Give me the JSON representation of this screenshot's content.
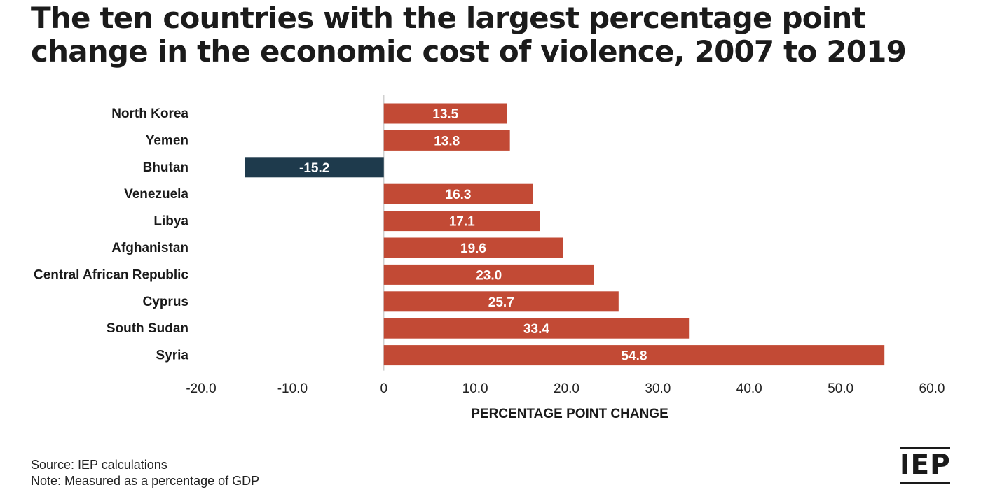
{
  "title_lines": [
    "The ten countries with the largest percentage point",
    "change in the economic cost of violence, 2007 to 2019"
  ],
  "footer": {
    "source": "Source: IEP calculations",
    "note": "Note: Measured as a percentage of GDP"
  },
  "logo_text": "IEP",
  "colors": {
    "positive": "#c24a35",
    "negative": "#1e3a4c",
    "axis": "#d0d0d0",
    "text": "#1a1a1a"
  },
  "chart_data": {
    "type": "bar",
    "orientation": "horizontal",
    "categories": [
      "North Korea",
      "Yemen",
      "Bhutan",
      "Venezuela",
      "Libya",
      "Afghanistan",
      "Central African Republic",
      "Cyprus",
      "South Sudan",
      "Syria"
    ],
    "values": [
      13.5,
      13.8,
      -15.2,
      16.3,
      17.1,
      19.6,
      23.0,
      25.7,
      33.4,
      54.8
    ],
    "value_labels": [
      "13.5",
      "13.8",
      "-15.2",
      "16.3",
      "17.1",
      "19.6",
      "23.0",
      "25.7",
      "33.4",
      "54.8"
    ],
    "xlim": [
      -20,
      60
    ],
    "xticks": [
      -20,
      -10,
      0,
      10,
      20,
      30,
      40,
      50,
      60
    ],
    "xtick_labels": [
      "-20.0",
      "-10.0",
      "0",
      "10.0",
      "20.0",
      "30.0",
      "40.0",
      "50.0",
      "60.0"
    ],
    "xlabel": "PERCENTAGE POINT CHANGE",
    "grid": false,
    "legend": "none"
  }
}
